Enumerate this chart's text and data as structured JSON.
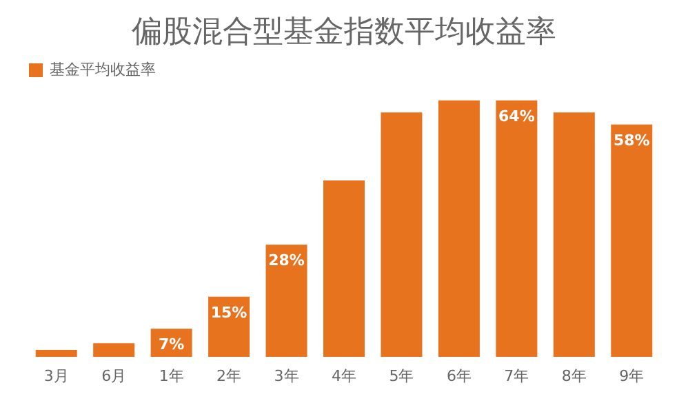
{
  "chart_data": {
    "type": "bar",
    "title": "偏股混合型基金指数平均收益率",
    "categories": [
      "3月",
      "6月",
      "1年",
      "2年",
      "3年",
      "4年",
      "5年",
      "6年",
      "7年",
      "8年",
      "9年"
    ],
    "series": [
      {
        "name": "基金平均收益率",
        "color": "#e8731f",
        "values": [
          1.7,
          3.4,
          7,
          15,
          28,
          44,
          61,
          64,
          64,
          61,
          58
        ],
        "value_labels": [
          null,
          null,
          "7%",
          "15%",
          "28%",
          null,
          null,
          null,
          "64%",
          null,
          "58%"
        ]
      }
    ],
    "legend": "top",
    "grid": false,
    "tick_labels": "x"
  }
}
